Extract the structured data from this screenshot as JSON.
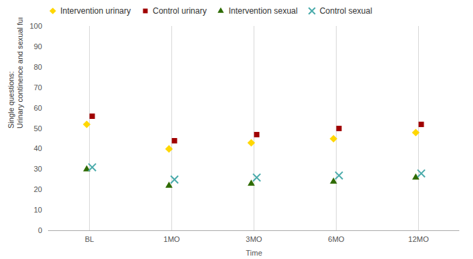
{
  "chart_data": {
    "type": "scatter",
    "categories": [
      "BL",
      "1MO",
      "3MO",
      "6MO",
      "12MO"
    ],
    "series": [
      {
        "name": "Intervention urinary",
        "color": "#FFD700",
        "marker": "diamond",
        "values": [
          52,
          40,
          43,
          45,
          48
        ]
      },
      {
        "name": "Control urinary",
        "color": "#A00000",
        "marker": "square",
        "values": [
          56,
          44,
          47,
          50,
          52
        ]
      },
      {
        "name": "Intervention sexual",
        "color": "#2E6B00",
        "marker": "triangle",
        "values": [
          30,
          22,
          23,
          24,
          26
        ]
      },
      {
        "name": "Control sexual",
        "color": "#4AABAB",
        "marker": "x",
        "values": [
          31,
          25,
          26,
          27,
          28
        ]
      }
    ],
    "xlabel": "Time",
    "ylabel": "Single questions:\nUrinary continence and sexual function",
    "ylim": [
      0,
      100
    ],
    "yticks": [
      0,
      10,
      20,
      30,
      40,
      50,
      60,
      70,
      80,
      90,
      100
    ],
    "grid": "x",
    "legend": "top"
  }
}
